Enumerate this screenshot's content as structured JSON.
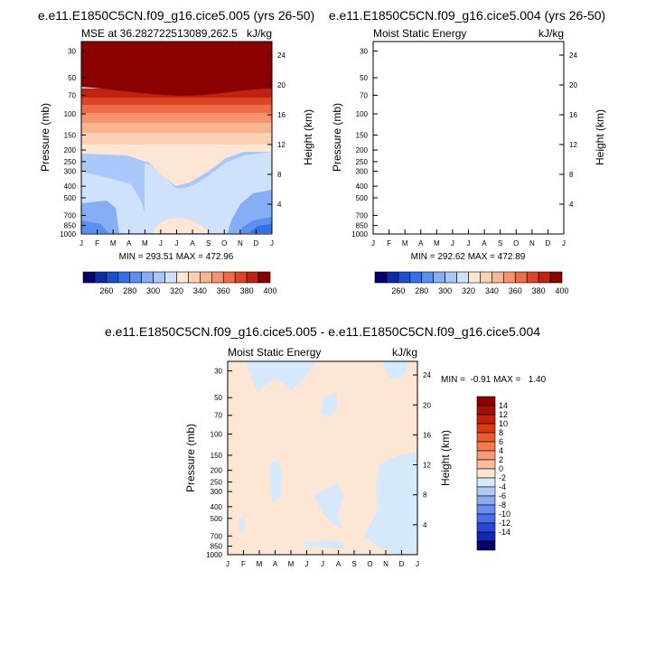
{
  "chart_data": [
    {
      "type": "contour",
      "title": "e.e11.E1850C5CN.f09_g16.cice5.005 (yrs 26-50)",
      "left_label": "MSE at 36.282722513089,262.5",
      "right_label": "kJ/kg",
      "xlabel": "",
      "ylabel": "Pressure (mb)",
      "ylabel_right": "Height (km)",
      "x_ticks": [
        "J",
        "F",
        "M",
        "A",
        "M",
        "J",
        "J",
        "A",
        "S",
        "O",
        "N",
        "D",
        "J"
      ],
      "y_ticks": [
        "30",
        "50",
        "70",
        "100",
        "150",
        "200",
        "250",
        "300",
        "400",
        "500",
        "700",
        "850",
        "1000"
      ],
      "y_range_mb": [
        1000,
        25
      ],
      "height_ticks": [
        "24",
        "20",
        "16",
        "12",
        "8",
        "4"
      ],
      "stats": "MIN = 293.51 MAX = 472.96",
      "colorbar_labels": [
        "260",
        "280",
        "300",
        "320",
        "340",
        "360",
        "380",
        "400"
      ]
    },
    {
      "type": "contour",
      "title": "e.e11.E1850C5CN.f09_g16.cice5.004 (yrs 26-50)",
      "left_label": "Moist Static Energy",
      "right_label": "kJ/kg",
      "xlabel": "",
      "ylabel": "Pressure (mb)",
      "ylabel_right": "Height (km)",
      "x_ticks": [
        "J",
        "F",
        "M",
        "A",
        "M",
        "J",
        "J",
        "A",
        "S",
        "O",
        "N",
        "D",
        "J"
      ],
      "y_ticks": [
        "30",
        "50",
        "70",
        "100",
        "150",
        "200",
        "250",
        "300",
        "400",
        "500",
        "700",
        "850",
        "1000"
      ],
      "y_range_mb": [
        1000,
        25
      ],
      "height_ticks": [
        "24",
        "20",
        "16",
        "12",
        "8",
        "4"
      ],
      "stats": "MIN = 292.62 MAX = 472.89",
      "colorbar_labels": [
        "260",
        "280",
        "300",
        "320",
        "340",
        "360",
        "380",
        "400"
      ]
    },
    {
      "type": "contour",
      "title": "e.e11.E1850C5CN.f09_g16.cice5.005 - e.e11.E1850C5CN.f09_g16.cice5.004",
      "left_label": "Moist Static Energy",
      "right_label": "kJ/kg",
      "xlabel": "",
      "ylabel": "Pressure (mb)",
      "ylabel_right": "Height (km)",
      "x_ticks": [
        "J",
        "F",
        "M",
        "A",
        "M",
        "J",
        "J",
        "A",
        "S",
        "O",
        "N",
        "D",
        "J"
      ],
      "y_ticks": [
        "30",
        "50",
        "70",
        "100",
        "150",
        "200",
        "250",
        "300",
        "400",
        "500",
        "700",
        "850",
        "1000"
      ],
      "y_range_mb": [
        1000,
        25
      ],
      "height_ticks": [
        "24",
        "20",
        "16",
        "12",
        "8",
        "4"
      ],
      "stats": "MIN =  -0.91 MAX =   1.40",
      "colorbar_labels": [
        "14",
        "12",
        "10",
        "8",
        "6",
        "4",
        "2",
        "0",
        "-2",
        "-4",
        "-6",
        "-8",
        "-10",
        "-12",
        "-14"
      ]
    }
  ],
  "colors": {
    "mse_levels": [
      "#08006b",
      "#0d2ba6",
      "#1a4fd0",
      "#3470e8",
      "#5a90f0",
      "#86aef5",
      "#a9c8f9",
      "#cfe1fb",
      "#fde6d4",
      "#fcd0b3",
      "#f9b490",
      "#f6936d",
      "#ee6c47",
      "#dc4424",
      "#bf220f",
      "#8b0000"
    ],
    "diff_levels": [
      "#8b0000",
      "#a51004",
      "#c02307",
      "#dc3a10",
      "#ef5a2a",
      "#f57b4c",
      "#f89b73",
      "#fbbd9d",
      "#fde6d4",
      "#d6e8fb",
      "#aecaf7",
      "#8aabf3",
      "#6a8cef",
      "#4a6ce8",
      "#2a46d6",
      "#1427b3",
      "#08006b"
    ],
    "diff_field": "#fde6d4",
    "diff_patch": "#d6e8fb"
  }
}
